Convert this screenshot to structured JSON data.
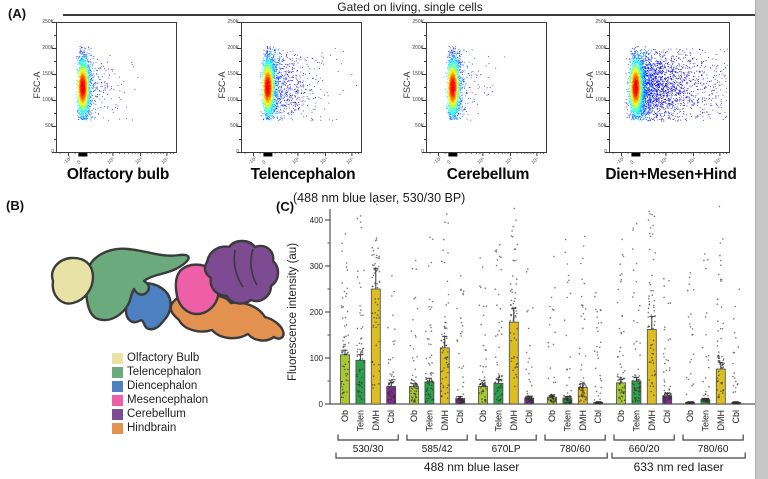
{
  "figure": {
    "panel_a": {
      "label": "(A)",
      "header": "Gated on living, single cells",
      "y_axis_label": "FSC-A",
      "y_ticks": [
        "250K",
        "200K",
        "150K",
        "100K",
        "50K",
        "0"
      ],
      "x_ticks": [
        "-10²",
        "0",
        "10³",
        "10⁴",
        "10⁵"
      ],
      "plots": [
        {
          "title": "Olfactory bulb",
          "tail_points": 350,
          "tail_reach": 10
        },
        {
          "title": "Telencephalon",
          "tail_points": 900,
          "tail_reach": 16
        },
        {
          "title": "Cerebellum",
          "tail_points": 260,
          "tail_reach": 8
        },
        {
          "title": "Dien+Mesen+Hind",
          "tail_points": 2600,
          "tail_reach": 26
        }
      ]
    },
    "panel_b": {
      "label": "(B)",
      "regions": [
        {
          "name": "Olfactory Bulb",
          "color": "#e8e2a6"
        },
        {
          "name": "Telencephalon",
          "color": "#6baa7c"
        },
        {
          "name": "Diencephalon",
          "color": "#4d80c0"
        },
        {
          "name": "Mesencephalon",
          "color": "#ee5fa8"
        },
        {
          "name": "Cerebellum",
          "color": "#7c4b92"
        },
        {
          "name": "Hindbrain",
          "color": "#e2914f"
        }
      ]
    },
    "panel_c": {
      "label": "(C)",
      "channel_note": "(488 nm blue laser, 530/30 BP)"
    }
  },
  "chart_data": {
    "type": "bar",
    "ylabel": "Fluorescence intensity (au)",
    "ylim": [
      0,
      450
    ],
    "y_ticks": [
      0,
      100,
      200,
      300,
      400
    ],
    "grid": false,
    "legend_position": "none",
    "categories": [
      "Ob",
      "Telen",
      "DMH",
      "Cbl"
    ],
    "bar_colors": {
      "Ob": "#a9c934",
      "Telen": "#2fa04a",
      "DMH": "#dcbd22",
      "Cbl": "#7c2f8e"
    },
    "groups": [
      {
        "filter": "530/30",
        "laser": "488 nm blue laser",
        "values": [
          107,
          95,
          250,
          38
        ],
        "errors": [
          10,
          12,
          45,
          8
        ],
        "dot_max": [
          370,
          410,
          445,
          300
        ]
      },
      {
        "filter": "585/42",
        "laser": "488 nm blue laser",
        "values": [
          38,
          48,
          122,
          12
        ],
        "errors": [
          6,
          8,
          25,
          4
        ],
        "dot_max": [
          330,
          390,
          430,
          290
        ]
      },
      {
        "filter": "670LP",
        "laser": "488 nm blue laser",
        "values": [
          38,
          45,
          178,
          13
        ],
        "errors": [
          6,
          8,
          30,
          4
        ],
        "dot_max": [
          350,
          400,
          445,
          300
        ]
      },
      {
        "filter": "780/60",
        "laser": "488 nm blue laser",
        "values": [
          15,
          13,
          36,
          3
        ],
        "errors": [
          4,
          3,
          8,
          2
        ],
        "dot_max": [
          330,
          370,
          420,
          260
        ]
      },
      {
        "filter": "660/20",
        "laser": "633 nm red laser",
        "values": [
          46,
          50,
          162,
          18
        ],
        "errors": [
          7,
          8,
          28,
          5
        ],
        "dot_max": [
          360,
          400,
          440,
          300
        ]
      },
      {
        "filter": "780/60",
        "laser": "633 nm red laser",
        "values": [
          3,
          9,
          76,
          3
        ],
        "errors": [
          2,
          3,
          14,
          2
        ],
        "dot_max": [
          300,
          360,
          430,
          280
        ]
      }
    ],
    "laser_spans": [
      {
        "label": "488 nm blue laser",
        "from": 0,
        "to": 3
      },
      {
        "label": "633 nm red laser",
        "from": 4,
        "to": 5
      }
    ]
  }
}
